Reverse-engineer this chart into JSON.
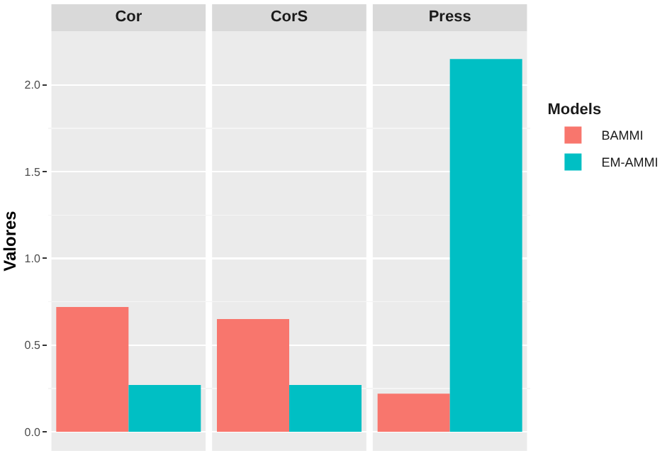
{
  "chart_data": {
    "type": "bar",
    "ylabel": "Valores",
    "legend_title": "Models",
    "categories": [
      "Cor",
      "CorS",
      "Press"
    ],
    "series": [
      {
        "name": "BAMMI",
        "color": "#f8766d",
        "values": [
          0.72,
          0.65,
          0.22
        ]
      },
      {
        "name": "EM-AMMI",
        "color": "#00bfc4",
        "values": [
          0.27,
          0.27,
          2.15
        ]
      }
    ],
    "ylim": [
      -0.11,
      2.31
    ],
    "yticks": [
      {
        "value": 0,
        "label": "0.0"
      },
      {
        "value": 0.5,
        "label": "0.5"
      },
      {
        "value": 1,
        "label": "1.0"
      },
      {
        "value": 1.5,
        "label": "1.5"
      },
      {
        "value": 2,
        "label": "2.0"
      }
    ],
    "grid": "y",
    "legend": "right"
  }
}
